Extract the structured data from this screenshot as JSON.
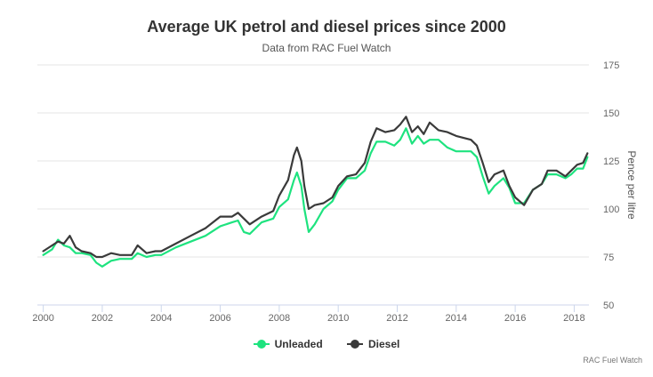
{
  "chart_data": {
    "type": "line",
    "title": "Average UK petrol and diesel prices since 2000",
    "subtitle": "Data from RAC Fuel Watch",
    "ylabel": "Pence per litre",
    "xlabel": "",
    "xlim": [
      1999.8,
      2018.5
    ],
    "ylim": [
      50,
      175
    ],
    "x_ticks": [
      2000,
      2002,
      2004,
      2006,
      2008,
      2010,
      2012,
      2014,
      2016,
      2018
    ],
    "y_ticks": [
      50,
      75,
      100,
      125,
      150,
      175
    ],
    "legend_position": "bottom-center",
    "credit": "RAC Fuel Watch",
    "series": [
      {
        "name": "Unleaded",
        "color": "#1ee37f",
        "points": [
          [
            2000.0,
            76
          ],
          [
            2000.3,
            79
          ],
          [
            2000.5,
            84
          ],
          [
            2000.7,
            81
          ],
          [
            2000.9,
            80
          ],
          [
            2001.1,
            77
          ],
          [
            2001.3,
            77
          ],
          [
            2001.6,
            76
          ],
          [
            2001.8,
            72
          ],
          [
            2002.0,
            70
          ],
          [
            2002.3,
            73
          ],
          [
            2002.6,
            74
          ],
          [
            2003.0,
            74
          ],
          [
            2003.2,
            77
          ],
          [
            2003.5,
            75
          ],
          [
            2003.8,
            76
          ],
          [
            2004.0,
            76
          ],
          [
            2004.5,
            80
          ],
          [
            2005.0,
            83
          ],
          [
            2005.5,
            86
          ],
          [
            2006.0,
            91
          ],
          [
            2006.4,
            93
          ],
          [
            2006.6,
            94
          ],
          [
            2006.8,
            88
          ],
          [
            2007.0,
            87
          ],
          [
            2007.4,
            93
          ],
          [
            2007.8,
            95
          ],
          [
            2008.0,
            101
          ],
          [
            2008.3,
            105
          ],
          [
            2008.5,
            115
          ],
          [
            2008.6,
            119
          ],
          [
            2008.75,
            112
          ],
          [
            2008.85,
            100
          ],
          [
            2009.0,
            88
          ],
          [
            2009.2,
            92
          ],
          [
            2009.5,
            100
          ],
          [
            2009.8,
            104
          ],
          [
            2010.0,
            110
          ],
          [
            2010.3,
            116
          ],
          [
            2010.6,
            116
          ],
          [
            2010.9,
            120
          ],
          [
            2011.1,
            129
          ],
          [
            2011.3,
            135
          ],
          [
            2011.6,
            135
          ],
          [
            2011.9,
            133
          ],
          [
            2012.1,
            136
          ],
          [
            2012.3,
            142
          ],
          [
            2012.5,
            134
          ],
          [
            2012.7,
            138
          ],
          [
            2012.9,
            134
          ],
          [
            2013.1,
            136
          ],
          [
            2013.4,
            136
          ],
          [
            2013.7,
            132
          ],
          [
            2014.0,
            130
          ],
          [
            2014.5,
            130
          ],
          [
            2014.7,
            127
          ],
          [
            2014.9,
            117
          ],
          [
            2015.1,
            108
          ],
          [
            2015.3,
            112
          ],
          [
            2015.6,
            116
          ],
          [
            2015.8,
            111
          ],
          [
            2016.0,
            103
          ],
          [
            2016.3,
            103
          ],
          [
            2016.6,
            110
          ],
          [
            2016.9,
            113
          ],
          [
            2017.1,
            118
          ],
          [
            2017.4,
            118
          ],
          [
            2017.7,
            116
          ],
          [
            2017.9,
            118
          ],
          [
            2018.1,
            121
          ],
          [
            2018.3,
            121
          ],
          [
            2018.45,
            127
          ]
        ]
      },
      {
        "name": "Diesel",
        "color": "#3a3a3a",
        "points": [
          [
            2000.0,
            78
          ],
          [
            2000.3,
            81
          ],
          [
            2000.5,
            83
          ],
          [
            2000.7,
            82
          ],
          [
            2000.9,
            86
          ],
          [
            2001.1,
            80
          ],
          [
            2001.3,
            78
          ],
          [
            2001.6,
            77
          ],
          [
            2001.8,
            75
          ],
          [
            2002.0,
            75
          ],
          [
            2002.3,
            77
          ],
          [
            2002.6,
            76
          ],
          [
            2003.0,
            76
          ],
          [
            2003.2,
            81
          ],
          [
            2003.5,
            77
          ],
          [
            2003.8,
            78
          ],
          [
            2004.0,
            78
          ],
          [
            2004.5,
            82
          ],
          [
            2005.0,
            86
          ],
          [
            2005.5,
            90
          ],
          [
            2006.0,
            96
          ],
          [
            2006.4,
            96
          ],
          [
            2006.6,
            98
          ],
          [
            2006.8,
            95
          ],
          [
            2007.0,
            92
          ],
          [
            2007.4,
            96
          ],
          [
            2007.8,
            99
          ],
          [
            2008.0,
            107
          ],
          [
            2008.3,
            115
          ],
          [
            2008.5,
            128
          ],
          [
            2008.6,
            132
          ],
          [
            2008.75,
            125
          ],
          [
            2008.85,
            112
          ],
          [
            2009.0,
            100
          ],
          [
            2009.2,
            102
          ],
          [
            2009.5,
            103
          ],
          [
            2009.8,
            106
          ],
          [
            2010.0,
            112
          ],
          [
            2010.3,
            117
          ],
          [
            2010.6,
            118
          ],
          [
            2010.9,
            124
          ],
          [
            2011.1,
            135
          ],
          [
            2011.3,
            142
          ],
          [
            2011.6,
            140
          ],
          [
            2011.9,
            141
          ],
          [
            2012.1,
            144
          ],
          [
            2012.3,
            148
          ],
          [
            2012.5,
            140
          ],
          [
            2012.7,
            143
          ],
          [
            2012.9,
            139
          ],
          [
            2013.1,
            145
          ],
          [
            2013.4,
            141
          ],
          [
            2013.7,
            140
          ],
          [
            2014.0,
            138
          ],
          [
            2014.5,
            136
          ],
          [
            2014.7,
            133
          ],
          [
            2014.9,
            124
          ],
          [
            2015.1,
            114
          ],
          [
            2015.3,
            118
          ],
          [
            2015.6,
            120
          ],
          [
            2015.8,
            112
          ],
          [
            2016.0,
            106
          ],
          [
            2016.3,
            102
          ],
          [
            2016.6,
            110
          ],
          [
            2016.9,
            113
          ],
          [
            2017.1,
            120
          ],
          [
            2017.4,
            120
          ],
          [
            2017.7,
            117
          ],
          [
            2017.9,
            120
          ],
          [
            2018.1,
            123
          ],
          [
            2018.3,
            124
          ],
          [
            2018.45,
            129
          ]
        ]
      }
    ]
  }
}
